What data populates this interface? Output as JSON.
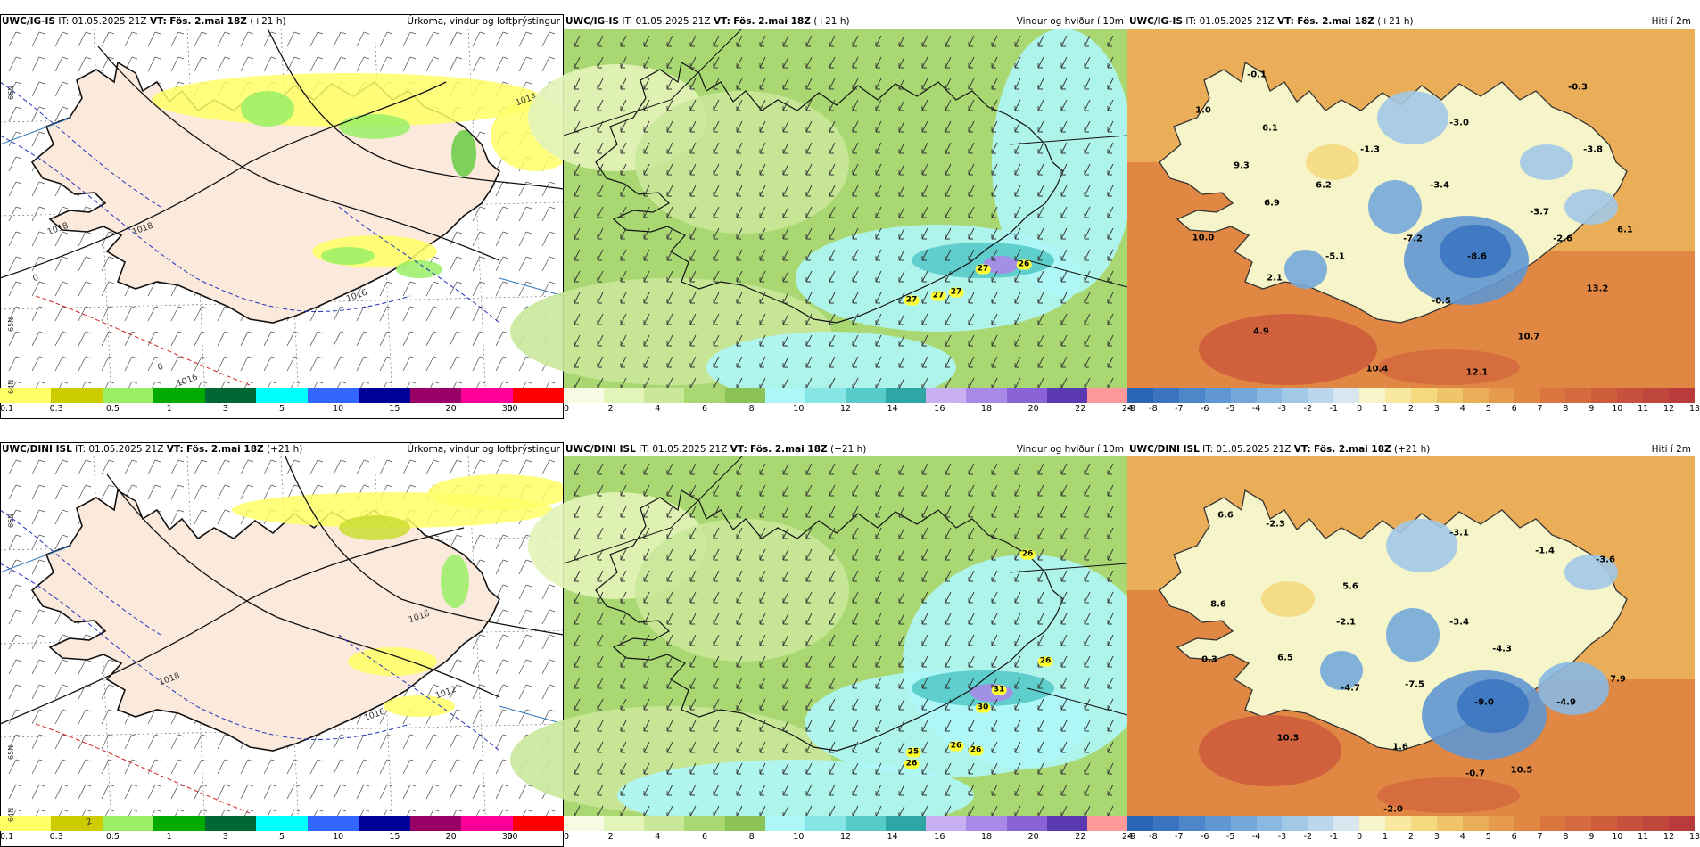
{
  "precip": {
    "title_right": "Úrkoma, vindur og loftþrýstingur",
    "legend_colors": [
      "#ffff66",
      "#cccc00",
      "#99ee66",
      "#00aa00",
      "#006633",
      "#00ffff",
      "#3366ff",
      "#000099",
      "#990066",
      "#ff0099",
      "#ff0000"
    ],
    "legend_ticks": [
      "0.1",
      "0.3",
      "0.5",
      "1",
      "3",
      "5",
      "10",
      "15",
      "20",
      "30",
      "50"
    ],
    "land_color": "#fbe9dc",
    "iso_labels_top": [
      "1018",
      "1014",
      "1018",
      "1016",
      "1016",
      "0",
      "0"
    ],
    "iso_labels_bottom": [
      "1018",
      "1016",
      "1016",
      "1012",
      "2"
    ],
    "lat_labels": [
      "66N",
      "65N",
      "64N"
    ]
  },
  "wind": {
    "title_right": "Vindur og hviður í 10m",
    "legend_colors": [
      "#f7fbe4",
      "#e3f4b9",
      "#c9e89a",
      "#a9d873",
      "#8cc356",
      "#aef7f7",
      "#86e6e6",
      "#57caca",
      "#2ea6a6",
      "#c9b0f2",
      "#a989e8",
      "#8a63d6",
      "#5b39b0",
      "#ff9999"
    ],
    "legend_ticks": [
      "0",
      "2",
      "4",
      "6",
      "8",
      "10",
      "12",
      "14",
      "16",
      "18",
      "20",
      "22",
      "24"
    ],
    "gusts_top": [
      "27",
      "27",
      "27",
      "27",
      "26"
    ],
    "gusts_bottom": [
      "26",
      "26",
      "26",
      "25",
      "26",
      "30",
      "31",
      "26"
    ]
  },
  "temp": {
    "title_right": "Hiti í 2m",
    "legend_colors": [
      "#2b65b5",
      "#3b75c0",
      "#4d86c9",
      "#6097d2",
      "#74a8da",
      "#8ab8e1",
      "#a2c8e7",
      "#bcd6ec",
      "#d8e6ef",
      "#f6f5c9",
      "#f8e8a0",
      "#f5d97f",
      "#f0c468",
      "#ebae58",
      "#e59a4c",
      "#e08744",
      "#db753f",
      "#d46a3e",
      "#ce5d3c",
      "#c7513c",
      "#c0473c",
      "#b93b3c"
    ],
    "legend_ticks": [
      "-9",
      "-8",
      "-7",
      "-6",
      "-5",
      "-4",
      "-3",
      "-2",
      "-1",
      "0",
      "1",
      "2",
      "3",
      "4",
      "5",
      "6",
      "7",
      "8",
      "9",
      "10",
      "11",
      "12",
      "13"
    ],
    "labels_top": [
      "-0.1",
      "-0.3",
      "1.0",
      "6.1",
      "-3.0",
      "-1.3",
      "-3.8",
      "9.3",
      "-3.4",
      "6.2",
      "-3.7",
      "6.9",
      "10.0",
      "-7.2",
      "-2.6",
      "6.1",
      "-5.1",
      "-8.6",
      "2.1",
      "13.2",
      "-0.5",
      "4.9",
      "10.7",
      "10.4",
      "12.1"
    ],
    "labels_bottom": [
      "6.6",
      "-2.3",
      "-3.1",
      "-1.4",
      "-3.6",
      "5.6",
      "8.6",
      "-2.1",
      "-3.4",
      "0.3",
      "6.5",
      "-4.3",
      "-4.7",
      "-7.5",
      "-9.0",
      "-4.9",
      "7.9",
      "10.3",
      "1.6",
      "-0.7",
      "10.5",
      "-2.0"
    ]
  },
  "rows": [
    {
      "model": "UWC/IG-IS",
      "it_label": "IT:",
      "it_value": "01.05.2025 21Z",
      "vt_label": "VT:",
      "vt_value": "Fös. 2.mai 18Z",
      "lead": "(+21 h)"
    },
    {
      "model": "UWC/DINI ISL",
      "it_label": "IT:",
      "it_value": "01.05.2025 21Z",
      "vt_label": "VT:",
      "vt_value": "Fös. 2.mai 18Z",
      "lead": "(+21 h)"
    }
  ]
}
